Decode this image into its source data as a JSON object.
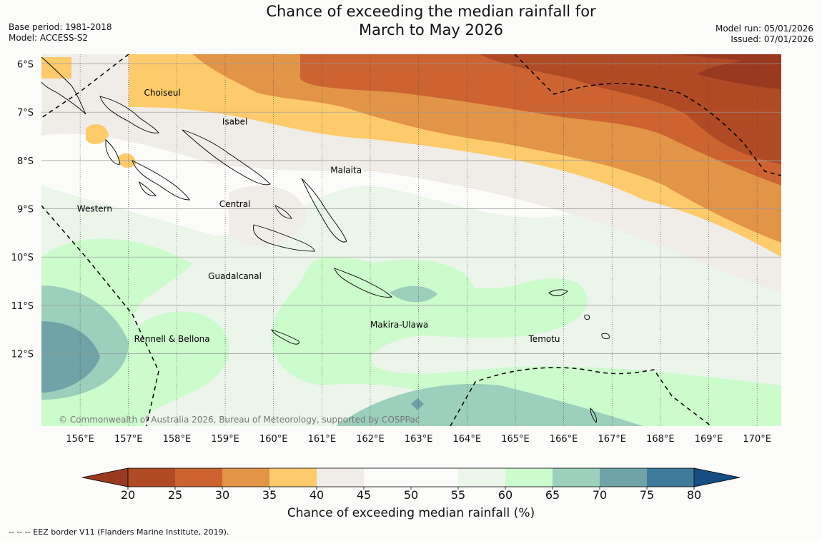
{
  "title": {
    "line1": "Chance of exceeding the median rainfall for",
    "line2": "March to May 2026"
  },
  "meta": {
    "base_period": "Base period: 1981-2018",
    "model": "Model: ACCESS-S2",
    "model_run": "Model run: 05/01/2026",
    "issued": "Issued: 07/01/2026"
  },
  "map": {
    "lat_labels": [
      "6°S",
      "7°S",
      "8°S",
      "9°S",
      "10°S",
      "11°S",
      "12°S"
    ],
    "lat_values": [
      6,
      7,
      8,
      9,
      10,
      11,
      12
    ],
    "lon_labels": [
      "156°E",
      "157°E",
      "158°E",
      "159°E",
      "160°E",
      "161°E",
      "162°E",
      "163°E",
      "164°E",
      "165°E",
      "166°E",
      "167°E",
      "168°E",
      "169°E",
      "170°E"
    ],
    "lon_values": [
      156,
      157,
      158,
      159,
      160,
      161,
      162,
      163,
      164,
      165,
      166,
      167,
      168,
      169,
      170
    ],
    "lon_range": [
      155.2,
      170.5
    ],
    "lat_range": [
      5.8,
      13.5
    ],
    "copyright": "© Commonwealth of Australia 2026, Bureau of Meteorology, supported by COSPPac",
    "places": [
      {
        "name": "Choiseul",
        "lon": 157.7,
        "lat": 6.6
      },
      {
        "name": "Isabel",
        "lon": 159.2,
        "lat": 7.2
      },
      {
        "name": "Malaita",
        "lon": 161.5,
        "lat": 8.2
      },
      {
        "name": "Western",
        "lon": 156.3,
        "lat": 9.0
      },
      {
        "name": "Central",
        "lon": 159.2,
        "lat": 8.9
      },
      {
        "name": "Guadalcanal",
        "lon": 159.2,
        "lat": 10.4
      },
      {
        "name": "Makira-Ulawa",
        "lon": 162.6,
        "lat": 11.4
      },
      {
        "name": "Rennell & Bellona",
        "lon": 157.9,
        "lat": 11.7
      },
      {
        "name": "Temotu",
        "lon": 165.6,
        "lat": 11.7
      }
    ]
  },
  "colorbar": {
    "ticks": [
      20,
      25,
      30,
      35,
      40,
      45,
      50,
      55,
      60,
      65,
      70,
      75,
      80
    ],
    "colors": [
      "#b04a25",
      "#cc6331",
      "#e29447",
      "#fdcb6b",
      "#f0ece8",
      "#fbfcfa",
      "#fbfcfa",
      "#ebf5ea",
      "#ccfbcc",
      "#9ccfbc",
      "#6fa3a8",
      "#3e7b9b"
    ],
    "low_color": "#9a3920",
    "high_color": "#164e84",
    "label": "Chance of exceeding median rainfall (%)"
  },
  "footer": "--  --  -- EEZ border V11 (Flanders Marine Institute, 2019)."
}
